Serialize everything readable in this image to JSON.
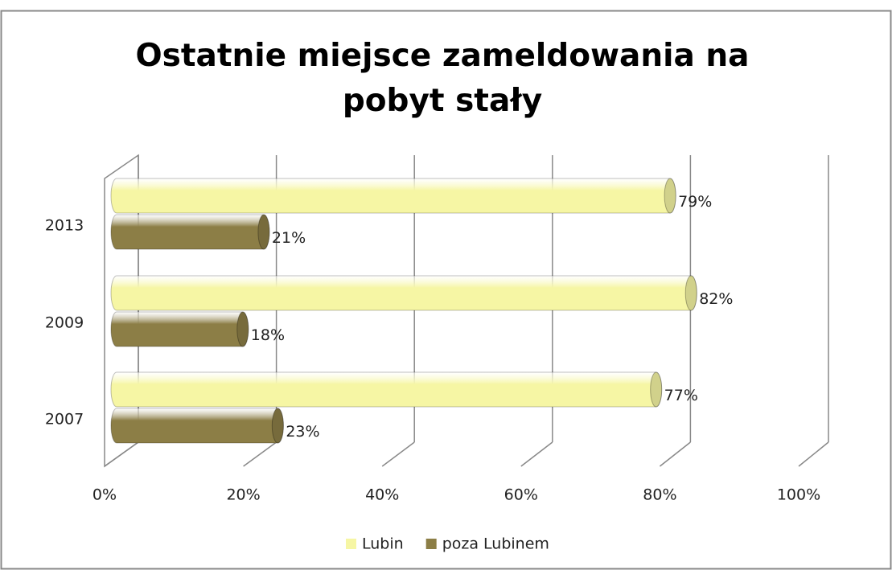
{
  "chart_data": {
    "type": "bar",
    "orientation": "horizontal",
    "title": "Ostatnie miejsce zameldowania na pobyt stały",
    "categories": [
      "2013",
      "2009",
      "2007"
    ],
    "series": [
      {
        "name": "Lubin",
        "color": "#f6f6a4",
        "values": [
          79,
          82,
          77
        ],
        "value_labels": [
          "79%",
          "82%",
          "77%"
        ]
      },
      {
        "name": "poza Lubinem",
        "color": "#8c7e46",
        "values": [
          21,
          18,
          23
        ],
        "value_labels": [
          "21%",
          "18%",
          "23%"
        ]
      }
    ],
    "xlim": [
      0,
      100
    ],
    "xticks": [
      {
        "value": 0,
        "label": "0%"
      },
      {
        "value": 20,
        "label": "20%"
      },
      {
        "value": 40,
        "label": "40%"
      },
      {
        "value": 60,
        "label": "60%"
      },
      {
        "value": 80,
        "label": "80%"
      },
      {
        "value": 100,
        "label": "100%"
      }
    ],
    "grid": true,
    "legend": "bottom"
  }
}
